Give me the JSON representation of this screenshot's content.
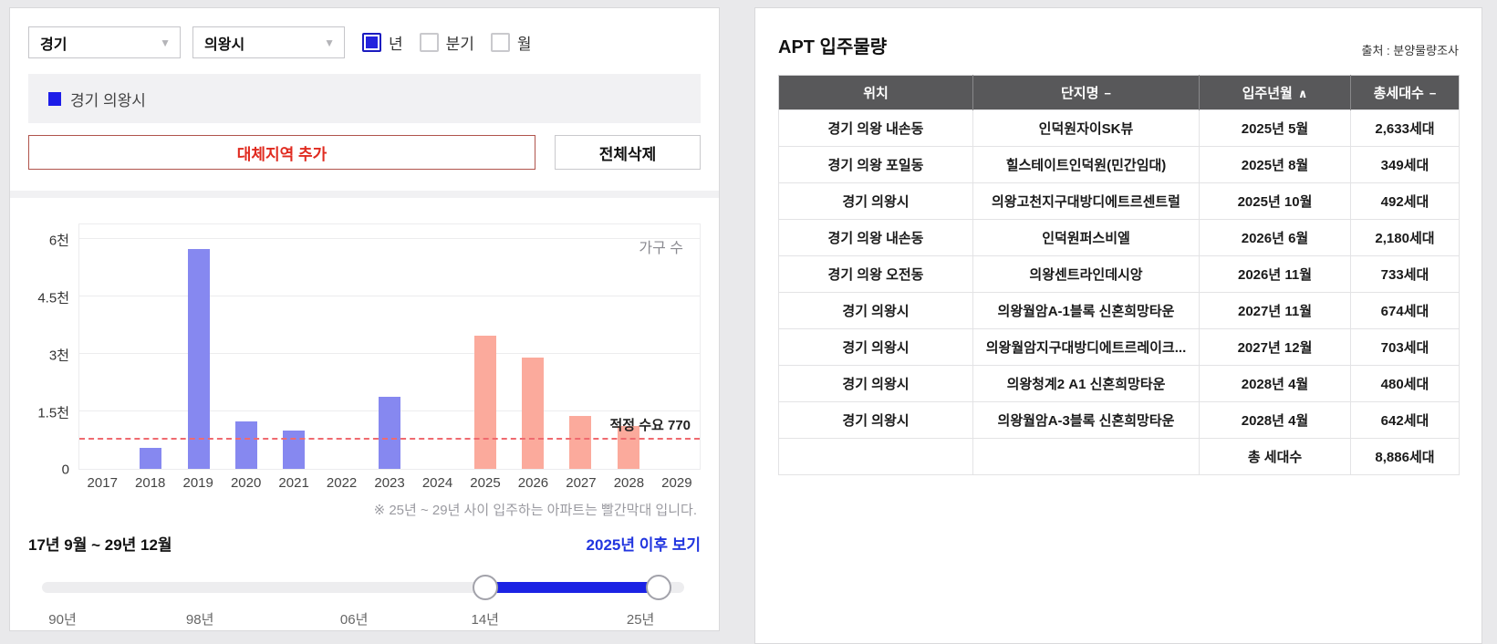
{
  "filters": {
    "province": "경기",
    "city": "의왕시",
    "period_options": [
      {
        "label": "년",
        "checked": true
      },
      {
        "label": "분기",
        "checked": false
      },
      {
        "label": "월",
        "checked": false
      }
    ]
  },
  "legend": {
    "label": "경기 의왕시",
    "color": "#1d1de8"
  },
  "actions": {
    "add_region": "대체지역 추가",
    "delete_all": "전체삭제"
  },
  "chart_data": {
    "type": "bar",
    "title": "APT 입주물량 (가구 수)",
    "unit_label": "가구 수",
    "categories": [
      "2017",
      "2018",
      "2019",
      "2020",
      "2021",
      "2022",
      "2023",
      "2024",
      "2025",
      "2026",
      "2027",
      "2028",
      "2029"
    ],
    "values": [
      0,
      550,
      5750,
      1230,
      1000,
      0,
      1880,
      0,
      3474,
      2913,
      1377,
      1122,
      0
    ],
    "bar_colors": [
      "blue",
      "blue",
      "blue",
      "blue",
      "blue",
      "blue",
      "blue",
      "blue",
      "red",
      "red",
      "red",
      "red",
      "red"
    ],
    "y_ticks": [
      "0",
      "1.5천",
      "3천",
      "4.5천",
      "6천"
    ],
    "y_tick_values": [
      0,
      1500,
      3000,
      4500,
      6000
    ],
    "ylim": [
      0,
      6400
    ],
    "grid": true,
    "legend_position": "none",
    "reference_line": {
      "value": 770,
      "label": "적정 수요 770"
    },
    "colors": {
      "past_bar": "#8688f0",
      "future_bar": "#fbaa9c",
      "ref_line": "#ef6a6f"
    }
  },
  "chart_note": "※ 25년 ~ 29년 사이 입주하는 아파트는 빨간막대 입니다.",
  "range": {
    "current": "17년 9월 ~ 29년 12월",
    "view_after_link": "2025년 이후 보기",
    "slider_ticks": [
      "90년",
      "98년",
      "06년",
      "14년",
      "25년"
    ],
    "slider_tick_positions_pct": [
      3.2,
      24.6,
      48.6,
      69,
      93.2
    ],
    "selected_start_pct": 69,
    "selected_end_pct": 96
  },
  "table_panel": {
    "title": "APT 입주물량",
    "source": "출처 : 분양물량조사",
    "columns": [
      {
        "label": "위치",
        "sort": ""
      },
      {
        "label": "단지명",
        "sort": "−"
      },
      {
        "label": "입주년월",
        "sort": "∧"
      },
      {
        "label": "총세대수",
        "sort": "−"
      }
    ],
    "rows": [
      [
        "경기 의왕 내손동",
        "인덕원자이SK뷰",
        "2025년 5월",
        "2,633세대"
      ],
      [
        "경기 의왕 포일동",
        "힐스테이트인덕원(민간임대)",
        "2025년 8월",
        "349세대"
      ],
      [
        "경기 의왕시",
        "의왕고천지구대방디에트르센트럴",
        "2025년 10월",
        "492세대"
      ],
      [
        "경기 의왕 내손동",
        "인덕원퍼스비엘",
        "2026년 6월",
        "2,180세대"
      ],
      [
        "경기 의왕 오전동",
        "의왕센트라인데시앙",
        "2026년 11월",
        "733세대"
      ],
      [
        "경기 의왕시",
        "의왕월암A-1블록 신혼희망타운",
        "2027년 11월",
        "674세대"
      ],
      [
        "경기 의왕시",
        "의왕월암지구대방디에트르레이크...",
        "2027년 12월",
        "703세대"
      ],
      [
        "경기 의왕시",
        "의왕청계2 A1 신혼희망타운",
        "2028년 4월",
        "480세대"
      ],
      [
        "경기 의왕시",
        "의왕월암A-3블록 신혼희망타운",
        "2028년 4월",
        "642세대"
      ]
    ],
    "total_row": {
      "label": "총 세대수",
      "value": "8,886세대"
    }
  }
}
